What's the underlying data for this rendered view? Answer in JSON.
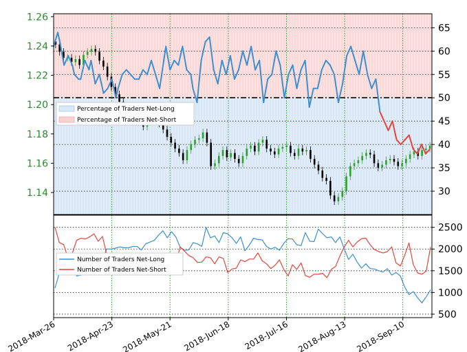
{
  "colors": {
    "price_axis": "#2a8a2a",
    "net_long": "#3d8fd1",
    "net_short": "#e8443a",
    "long_fill": "#dbe9f8",
    "short_fill": "#fbdcdc",
    "grid_green": "#2ca02c",
    "candle_up": "#2ca02c",
    "candle_down": "#000000"
  },
  "x_axis": {
    "tick_labels": [
      "2018-Mar-26",
      "2018-Apr-23",
      "2018-May-21",
      "2018-Jun-18",
      "2018-Jul-16",
      "2018-Aug-13",
      "2018-Sep-10"
    ]
  },
  "legend_top": {
    "items": [
      "Percentage of Traders Net-Long",
      "Percentage of Traders Net-Short"
    ]
  },
  "legend_bottom": {
    "items": [
      "Number of Traders Net-Long",
      "Number of Traders Net-Short"
    ]
  },
  "chart_data": [
    {
      "type": "line",
      "panel": "top",
      "description_free": true,
      "price_axis": {
        "ticks": [
          "1.14",
          "1.16",
          "1.18",
          "1.20",
          "1.22",
          "1.24",
          "1.26"
        ],
        "ylim": [
          1.125,
          1.262
        ]
      },
      "pct_axis": {
        "ticks": [
          "30",
          "35",
          "40",
          "45",
          "50",
          "55",
          "60",
          "65"
        ],
        "ylim": [
          25,
          68
        ]
      },
      "x_range_days": [
        0,
        182
      ],
      "reference_level": 50,
      "series": [
        {
          "name": "Percentage of Traders Net-Long",
          "x": [
            0,
            2,
            3,
            5,
            7,
            9,
            10,
            12,
            13,
            15,
            17,
            18,
            20,
            22,
            24,
            26,
            28,
            30,
            31,
            33,
            35,
            37,
            39,
            41,
            43,
            45,
            47,
            49,
            51,
            53,
            54,
            56,
            58,
            60,
            62,
            64,
            66,
            67,
            69,
            71,
            73,
            75,
            77,
            79,
            81,
            83,
            85,
            87,
            89,
            91,
            93,
            95,
            97,
            99,
            101,
            103,
            105,
            107,
            109,
            111,
            113,
            115,
            117,
            119,
            121,
            123,
            125,
            127,
            129,
            131,
            133,
            135,
            137,
            139,
            141,
            143,
            145,
            147,
            149,
            151,
            153,
            155,
            157,
            159,
            161,
            163,
            165,
            167,
            169,
            171,
            173,
            175,
            177,
            179,
            181
          ],
          "y": [
            61,
            64,
            62,
            57,
            59,
            57,
            55,
            54,
            54,
            58,
            56,
            58,
            53,
            55,
            51,
            52,
            54,
            50,
            52,
            55,
            56,
            55,
            54,
            54,
            56,
            55,
            58,
            55,
            52,
            58,
            61,
            56,
            58,
            57,
            61,
            56,
            55,
            52,
            49,
            58,
            62,
            63,
            56,
            53,
            58,
            55,
            59,
            54,
            56,
            60,
            57,
            61,
            56,
            58,
            49,
            54,
            55,
            60,
            57,
            50,
            55,
            57,
            52,
            56,
            58,
            48,
            52,
            52,
            56,
            58,
            57,
            55,
            49,
            53,
            59,
            61,
            58,
            55,
            60,
            55,
            52,
            54,
            47,
            45,
            43,
            45,
            41,
            40,
            41,
            42,
            39,
            38,
            40,
            38,
            39
          ],
          "color_key": "net_long"
        },
        {
          "name": "Percentage of Traders Net-Short",
          "x": [
            0,
            2,
            3,
            5,
            7,
            9,
            10,
            12,
            13,
            15,
            17,
            18,
            20,
            22,
            24,
            26,
            28,
            30,
            31,
            33,
            35,
            37,
            39,
            41,
            43,
            45,
            47,
            49,
            51,
            53,
            54,
            56,
            58,
            60,
            62,
            64,
            66,
            67,
            69,
            71,
            73,
            75,
            77,
            79,
            81,
            83,
            85,
            87,
            89,
            91,
            93,
            95,
            97,
            99,
            101,
            103,
            105,
            107,
            109,
            111,
            113,
            115,
            117,
            119,
            121,
            123,
            125,
            127,
            129,
            131,
            133,
            135,
            137,
            139,
            141,
            143,
            145,
            147,
            149,
            151,
            153,
            155,
            157,
            159,
            161,
            163,
            165,
            167,
            169,
            171,
            173,
            175,
            177,
            179,
            181
          ],
          "y": [
            39,
            36,
            38,
            43,
            41,
            43,
            45,
            46,
            46,
            42,
            44,
            42,
            47,
            45,
            49,
            48,
            46,
            50,
            48,
            45,
            44,
            45,
            46,
            46,
            44,
            45,
            42,
            45,
            48,
            42,
            39,
            44,
            42,
            43,
            39,
            44,
            45,
            48,
            51,
            42,
            38,
            37,
            44,
            47,
            42,
            45,
            41,
            46,
            44,
            40,
            43,
            39,
            44,
            42,
            51,
            46,
            45,
            40,
            43,
            50,
            45,
            43,
            48,
            44,
            42,
            52,
            48,
            48,
            44,
            42,
            43,
            45,
            51,
            47,
            41,
            39,
            42,
            45,
            40,
            45,
            48,
            46,
            53,
            55,
            57,
            55,
            59,
            60,
            59,
            58,
            61,
            62,
            60,
            62,
            61
          ],
          "color_key": "net_short"
        }
      ],
      "price": {
        "name": "EUR/USD",
        "values": [
          1.241,
          1.236,
          1.232,
          1.232,
          1.229,
          1.231,
          1.227,
          1.234,
          1.236,
          1.238,
          1.236,
          1.23,
          1.226,
          1.219,
          1.212,
          1.207,
          1.202,
          1.196,
          1.191,
          1.195,
          1.197,
          1.192,
          1.185,
          1.189,
          1.191,
          1.194,
          1.187,
          1.183,
          1.178,
          1.174,
          1.17,
          1.167,
          1.162,
          1.169,
          1.173,
          1.176,
          1.177,
          1.181,
          1.174,
          1.158,
          1.16,
          1.165,
          1.169,
          1.164,
          1.167,
          1.163,
          1.16,
          1.165,
          1.17,
          1.172,
          1.168,
          1.174,
          1.176,
          1.17,
          1.168,
          1.166,
          1.17,
          1.171,
          1.172,
          1.167,
          1.165,
          1.17,
          1.168,
          1.169,
          1.163,
          1.159,
          1.155,
          1.15,
          1.148,
          1.138,
          1.134,
          1.137,
          1.141,
          1.151,
          1.158,
          1.16,
          1.162,
          1.165,
          1.167,
          1.166,
          1.16,
          1.157,
          1.159,
          1.162,
          1.163,
          1.161,
          1.158,
          1.16,
          1.163,
          1.166,
          1.168,
          1.165,
          1.169,
          1.17,
          1.172
        ]
      }
    },
    {
      "type": "line",
      "panel": "bottom",
      "y_ticks": [
        "500",
        "1000",
        "1500",
        "2000",
        "2500"
      ],
      "ylim": [
        420,
        2780
      ],
      "series": [
        {
          "name": "Number of Traders Net-Long",
          "values": [
            1100,
            1450,
            1420,
            1530,
            1700,
            1380,
            1400,
            1420,
            1470,
            1460,
            1600,
            1780,
            2000,
            2000,
            2020,
            2050,
            2030,
            2030,
            2060,
            2060,
            1980,
            2120,
            2160,
            2200,
            2320,
            2420,
            2260,
            2400,
            2280,
            2040,
            1970,
            1980,
            2150,
            2120,
            2060,
            2500,
            2260,
            2300,
            2150,
            2380,
            2350,
            2260,
            2130,
            2280,
            1960,
            2090,
            2250,
            2220,
            2210,
            2060,
            2000,
            2040,
            1970,
            2130,
            2240,
            2230,
            2100,
            2080,
            2380,
            2180,
            2170,
            2460,
            2350,
            2260,
            2280,
            2150,
            2280,
            2000,
            1760,
            1880,
            1700,
            1560,
            1660,
            1550,
            1540,
            1500,
            1470,
            1550,
            1400,
            1460,
            1380,
            1130,
            950,
            1020,
            880,
            760,
            900,
            1060
          ],
          "color_key": "net_long"
        },
        {
          "name": "Number of Traders Net-Short",
          "values": [
            2500,
            2150,
            2100,
            1800,
            1900,
            2200,
            2250,
            2230,
            2280,
            2350,
            2180,
            2290,
            1860,
            1850,
            1880,
            1720,
            1880,
            1700,
            1830,
            1610,
            1610,
            1560,
            1580,
            1680,
            1620,
            1730,
            1470,
            1830,
            1680,
            2050,
            1950,
            1850,
            1800,
            1690,
            1700,
            1820,
            1800,
            1660,
            1820,
            1780,
            1460,
            1540,
            1560,
            1750,
            1710,
            1770,
            1770,
            1910,
            1730,
            1660,
            1550,
            1630,
            1750,
            1530,
            1380,
            1640,
            1530,
            1680,
            1390,
            1350,
            1420,
            1420,
            1440,
            1340,
            1530,
            1600,
            1840,
            2050,
            2200,
            2050,
            2160,
            2240,
            2250,
            2100,
            1990,
            1940,
            1910,
            1940,
            2050,
            1680,
            1610,
            1850,
            2140,
            1640,
            1450,
            1420,
            1490,
            2050
          ],
          "color_key": "net_short"
        }
      ]
    }
  ]
}
